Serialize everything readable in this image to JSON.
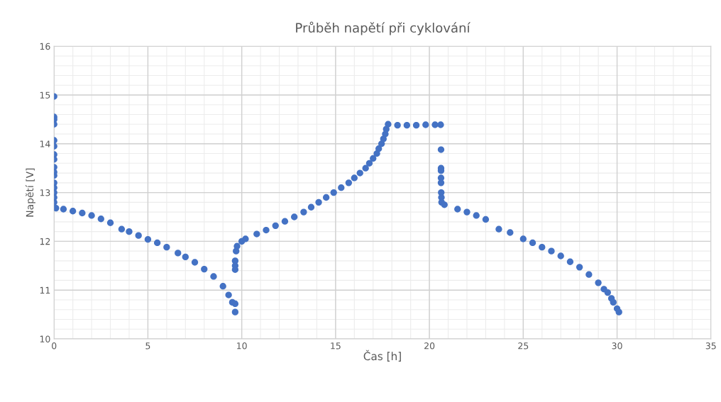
{
  "chart_data": {
    "type": "scatter",
    "title": "Průběh napětí při cyklování",
    "xlabel": "Čas [h]",
    "ylabel": "Napětí [V]",
    "x": [
      0,
      0,
      0,
      0,
      0,
      0,
      0,
      0,
      0,
      0,
      0,
      0,
      0,
      0,
      0,
      0,
      0.1,
      0.5,
      1,
      1.5,
      2,
      2.5,
      3,
      3.6,
      4,
      4.5,
      5,
      5.5,
      6,
      6.6,
      7,
      7.5,
      8,
      8.5,
      9,
      9.3,
      9.5,
      9.65,
      9.65,
      9.65,
      9.65,
      9.65,
      9.7,
      9.75,
      10,
      10.2,
      10.8,
      11.3,
      11.8,
      12.3,
      12.8,
      13.3,
      13.7,
      14.1,
      14.5,
      14.9,
      15.3,
      15.7,
      16,
      16.3,
      16.6,
      16.8,
      17,
      17.2,
      17.3,
      17.45,
      17.55,
      17.65,
      17.7,
      17.8,
      18.3,
      18.8,
      19.3,
      19.8,
      20.3,
      20.6,
      20.62,
      20.62,
      20.62,
      20.62,
      20.62,
      20.63,
      20.64,
      20.65,
      20.8,
      21.5,
      22,
      22.5,
      23,
      23.7,
      24.3,
      25,
      25.5,
      26,
      26.5,
      27,
      27.5,
      28,
      28.5,
      29,
      29.3,
      29.5,
      29.7,
      29.8,
      30,
      30.1
    ],
    "values": [
      14.97,
      14.55,
      14.5,
      14.4,
      14.07,
      13.95,
      13.78,
      13.68,
      13.52,
      13.42,
      13.35,
      13.2,
      13.1,
      13.0,
      12.9,
      12.8,
      12.68,
      12.66,
      12.62,
      12.58,
      12.53,
      12.46,
      12.38,
      12.25,
      12.2,
      12.12,
      12.04,
      11.97,
      11.88,
      11.76,
      11.68,
      11.57,
      11.43,
      11.28,
      11.08,
      10.9,
      10.75,
      10.55,
      10.72,
      11.42,
      11.5,
      11.6,
      11.8,
      11.9,
      12.0,
      12.05,
      12.15,
      12.23,
      12.32,
      12.41,
      12.5,
      12.6,
      12.7,
      12.8,
      12.9,
      13.0,
      13.1,
      13.2,
      13.3,
      13.4,
      13.5,
      13.6,
      13.7,
      13.8,
      13.9,
      14.0,
      14.1,
      14.2,
      14.3,
      14.4,
      14.38,
      14.38,
      14.38,
      14.39,
      14.39,
      14.39,
      13.88,
      13.5,
      13.45,
      13.3,
      13.2,
      13.0,
      12.9,
      12.8,
      12.75,
      12.66,
      12.6,
      12.53,
      12.45,
      12.25,
      12.18,
      12.05,
      11.97,
      11.88,
      11.8,
      11.7,
      11.58,
      11.47,
      11.32,
      11.15,
      11.02,
      10.95,
      10.83,
      10.75,
      10.62,
      10.55
    ],
    "color": "#4472c4",
    "marker": "circle",
    "xlim": [
      0,
      35
    ],
    "xticks": [
      0,
      5,
      10,
      15,
      20,
      25,
      30,
      35
    ],
    "ylim": [
      10,
      16
    ],
    "yticks": [
      10,
      11,
      12,
      13,
      14,
      15,
      16
    ],
    "grid": true
  }
}
